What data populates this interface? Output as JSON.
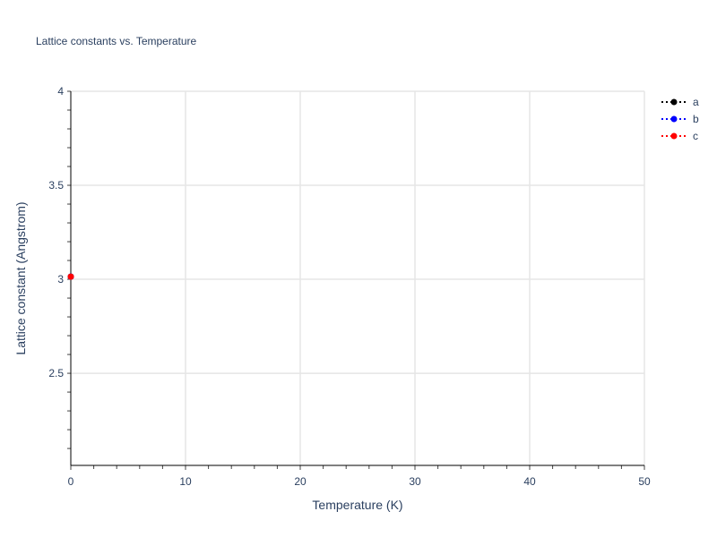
{
  "chart_data": {
    "type": "line",
    "title": "Lattice constants vs. Temperature",
    "xlabel": "Temperature (K)",
    "ylabel": "Lattice constant (Angstrom)",
    "xlim": [
      0,
      50
    ],
    "ylim": [
      2.01,
      4.0
    ],
    "xticks": [
      0,
      10,
      20,
      30,
      40,
      50
    ],
    "yticks": [
      2.5,
      3,
      3.5,
      4
    ],
    "grid": true,
    "legend_position": "top-right",
    "series": [
      {
        "name": "a",
        "color": "#000000",
        "line": "dotted",
        "x": [
          0
        ],
        "y": [
          3.014
        ]
      },
      {
        "name": "b",
        "color": "#0000ff",
        "line": "dotted",
        "x": [
          0
        ],
        "y": [
          3.014
        ]
      },
      {
        "name": "c",
        "color": "#ff0000",
        "line": "dotted",
        "x": [
          0
        ],
        "y": [
          3.014
        ]
      }
    ]
  }
}
